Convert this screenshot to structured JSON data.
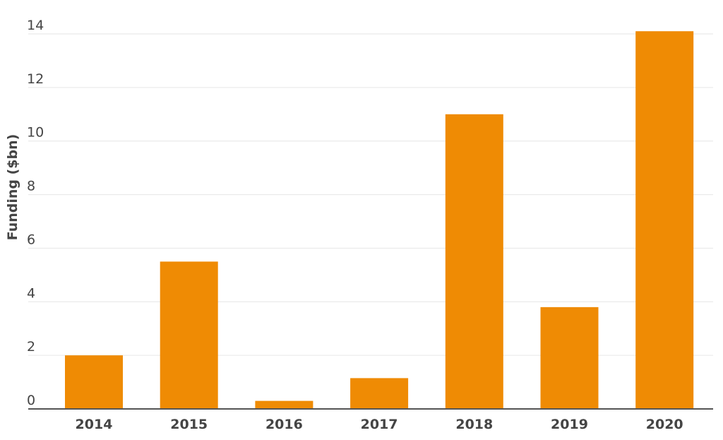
{
  "colors": {
    "bar": "#ef8b04",
    "grid": "#e6e6e6",
    "baseline": "#555555",
    "text": "#444444"
  },
  "chart_data": {
    "type": "bar",
    "title": "",
    "xlabel": "",
    "ylabel": "Funding ($bn)",
    "ylim": [
      0,
      14
    ],
    "yticks": [
      0,
      2,
      4,
      6,
      8,
      10,
      12,
      14
    ],
    "grid": true,
    "legend": "none",
    "categories": [
      "2014",
      "2015",
      "2016",
      "2017",
      "2018",
      "2019",
      "2020"
    ],
    "values": [
      2.0,
      5.5,
      0.3,
      1.15,
      11.0,
      3.8,
      14.1
    ]
  }
}
